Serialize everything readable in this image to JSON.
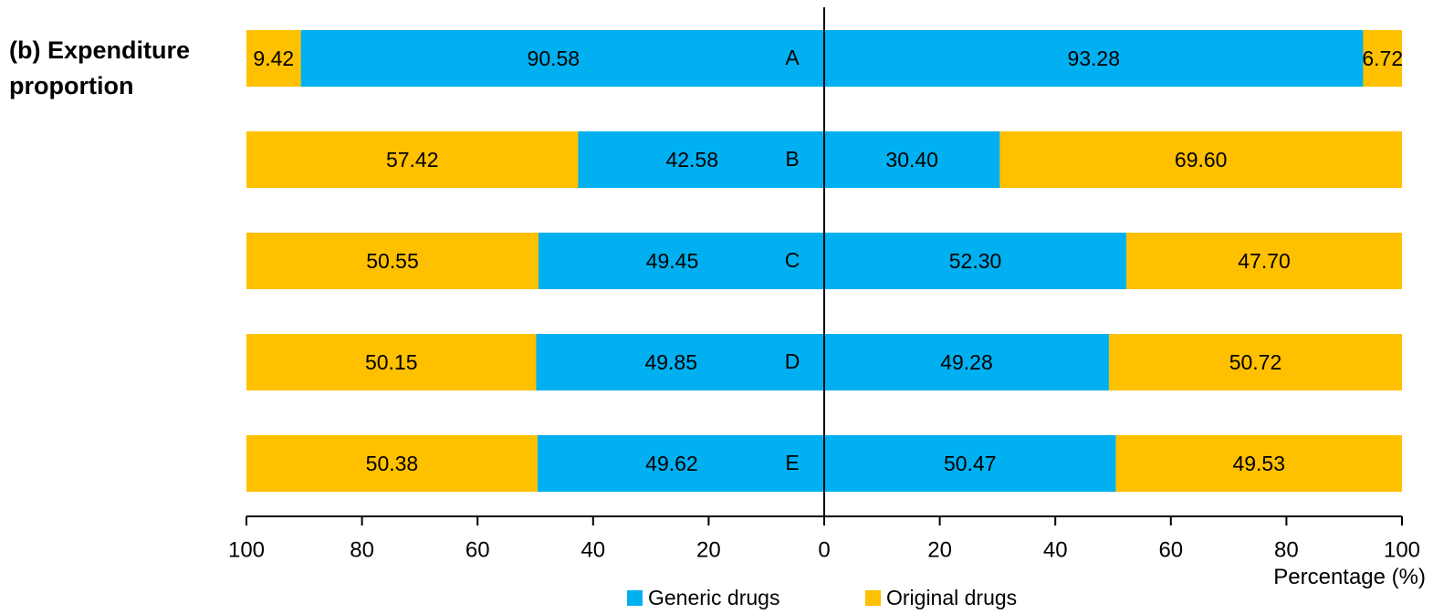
{
  "panel_title_line1": "(b) Expenditure",
  "panel_title_line2": "proportion",
  "colors": {
    "generic": "#00B0F0",
    "original": "#FFC000",
    "axis": "#000000"
  },
  "chart_data": {
    "type": "bar",
    "orientation": "horizontal",
    "layout": "two-sided stacked percentage",
    "categories": [
      "A",
      "B",
      "C",
      "D",
      "E"
    ],
    "xlabel": "Percentage (%)",
    "xlim_left": [
      100,
      0
    ],
    "xlim_right": [
      0,
      100
    ],
    "xticks_left": [
      100,
      80,
      60,
      40,
      20,
      0
    ],
    "xticks_right": [
      20,
      40,
      60,
      80,
      100
    ],
    "left_side": {
      "series": [
        {
          "name": "Generic drugs",
          "values": [
            90.58,
            42.58,
            49.45,
            49.85,
            49.62
          ],
          "labels": [
            "90.58",
            "42.58",
            "49.45",
            "49.85",
            "49.62"
          ]
        },
        {
          "name": "Original drugs",
          "values": [
            9.42,
            57.42,
            50.55,
            50.15,
            50.38
          ],
          "labels": [
            "9.42",
            "57.42",
            "50.55",
            "50.15",
            "50.38"
          ]
        }
      ]
    },
    "right_side": {
      "series": [
        {
          "name": "Generic drugs",
          "values": [
            93.28,
            30.4,
            52.3,
            49.28,
            50.47
          ],
          "labels": [
            "93.28",
            "30.40",
            "52.30",
            "49.28",
            "50.47"
          ]
        },
        {
          "name": "Original drugs",
          "values": [
            6.72,
            69.6,
            47.7,
            50.72,
            49.53
          ],
          "labels": [
            "6.72",
            "69.60",
            "47.70",
            "50.72",
            "49.53"
          ]
        }
      ]
    },
    "legend": [
      {
        "name": "Generic drugs",
        "color": "#00B0F0"
      },
      {
        "name": "Original drugs",
        "color": "#FFC000"
      }
    ],
    "legend_position": "bottom",
    "grid": false
  }
}
